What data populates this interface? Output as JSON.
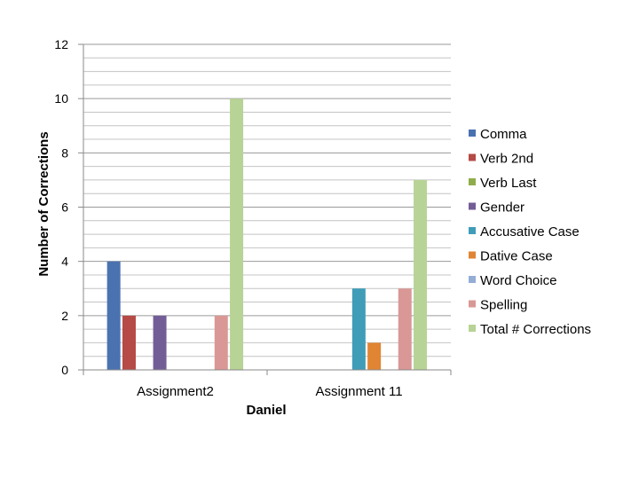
{
  "chart_data": {
    "type": "bar",
    "categories": [
      "Assignment2",
      "Assignment 11"
    ],
    "xlabel": "Daniel",
    "ylabel": "Number of Corrections",
    "ylim": [
      0,
      12
    ],
    "yticks": [
      "0",
      "2",
      "4",
      "6",
      "8",
      "10",
      "12"
    ],
    "grid": true,
    "legend_position": "right",
    "series": [
      {
        "name": "Comma",
        "color": "#4a72b0",
        "values": [
          4,
          0
        ]
      },
      {
        "name": "Verb 2nd",
        "color": "#b54a46",
        "values": [
          2,
          0
        ]
      },
      {
        "name": "Verb Last",
        "color": "#8fac4b",
        "values": [
          0,
          0
        ]
      },
      {
        "name": "Gender",
        "color": "#735d96",
        "values": [
          2,
          0
        ]
      },
      {
        "name": "Accusative Case",
        "color": "#3f9db8",
        "values": [
          0,
          3
        ]
      },
      {
        "name": "Dative Case",
        "color": "#e08533",
        "values": [
          0,
          1
        ]
      },
      {
        "name": "Word Choice",
        "color": "#94add6",
        "values": [
          0,
          0
        ]
      },
      {
        "name": "Spelling",
        "color": "#d99895",
        "values": [
          2,
          3
        ]
      },
      {
        "name": "Total # Corrections",
        "color": "#b8d396",
        "values": [
          10,
          7
        ]
      }
    ]
  }
}
